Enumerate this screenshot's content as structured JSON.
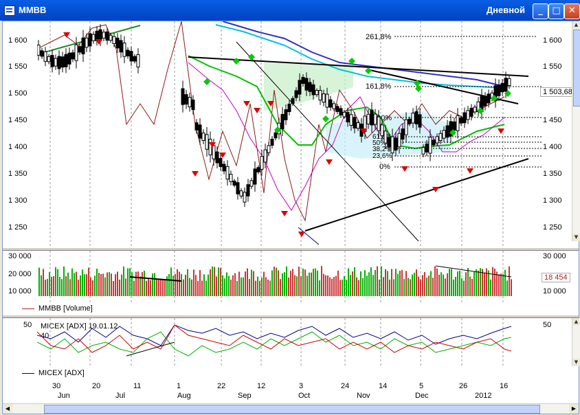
{
  "window": {
    "title": "MMBB",
    "mode": "Дневной",
    "minimize": "_",
    "maximize": "□",
    "close": "✕",
    "app_icon": "chart-window-icon"
  },
  "price": {
    "y_labels": [
      "1 600",
      "1 550",
      "1 500",
      "1 450",
      "1 400",
      "1 350",
      "1 300",
      "1 250"
    ],
    "last_value": "1 503,68",
    "fib": {
      "top": "261,8%",
      "upper": "161,8%",
      "l100": "100%",
      "l61": "61,8%",
      "l50": "50%",
      "l38": "38,2%",
      "l23": "23,6%",
      "l0": "0%"
    }
  },
  "volume": {
    "y_labels": [
      "30 000",
      "20 000",
      "10 000"
    ],
    "last_value": "18 454",
    "legend": "MMBB [Volume]",
    "legend_color": "#B22222"
  },
  "adx": {
    "y_labels": [
      "50"
    ],
    "header": "MICEX [ADX] 19.01.12",
    "header_value": "40",
    "legend": "MICEX [ADX]",
    "legend_color": "#00008B"
  },
  "xaxis": {
    "days": [
      "30",
      "20",
      "11",
      "1",
      "22",
      "12",
      "3",
      "24",
      "14",
      "5",
      "26",
      "16"
    ],
    "months": [
      "Jun",
      "Jul",
      "Aug",
      "Sep",
      "Oct",
      "Nov",
      "Dec",
      "2012"
    ]
  },
  "colors": {
    "up": "#00AA00",
    "down": "#CC0000",
    "cyan": "#00C0E0",
    "blue": "#3030C0",
    "magenta": "#C000C0",
    "green": "#00C000",
    "brown": "#8B1A1A"
  }
}
